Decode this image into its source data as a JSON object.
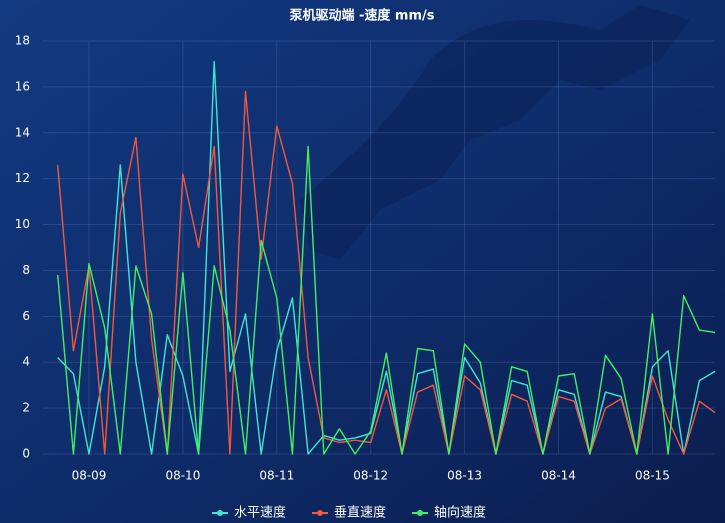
{
  "chart_data": {
    "type": "line",
    "title": "泵机驱动端 -速度 mm/s",
    "categories": [
      null,
      null,
      "08-09",
      null,
      null,
      null,
      null,
      null,
      "08-10",
      null,
      null,
      null,
      null,
      null,
      "08-11",
      null,
      null,
      null,
      null,
      null,
      "08-12",
      null,
      null,
      null,
      null,
      null,
      "08-13",
      null,
      null,
      null,
      null,
      null,
      "08-14",
      null,
      null,
      null,
      null,
      null,
      "08-15",
      null,
      null,
      null,
      null
    ],
    "series": [
      {
        "name": "水平速度",
        "color": "#3fe6d2",
        "values": [
          4.2,
          3.5,
          0,
          3.8,
          12.6,
          4.0,
          0,
          5.2,
          3.4,
          0,
          17.1,
          3.6,
          6.1,
          0,
          4.5,
          6.8,
          0,
          0.8,
          0.6,
          0.7,
          0.9,
          3.6,
          0,
          3.5,
          3.7,
          0,
          4.2,
          3.1,
          0,
          3.2,
          3.0,
          0,
          2.8,
          2.6,
          0,
          2.7,
          2.5,
          0,
          3.8,
          4.5,
          0,
          3.2,
          3.6
        ]
      },
      {
        "name": "垂直速度",
        "color": "#f2583c",
        "values": [
          12.6,
          4.5,
          8.2,
          0,
          10.5,
          13.8,
          5.0,
          0,
          12.2,
          9.0,
          13.4,
          0,
          15.8,
          8.5,
          14.3,
          11.8,
          4.2,
          0.7,
          0.5,
          0.6,
          0.5,
          2.8,
          0,
          2.7,
          3.0,
          0,
          3.4,
          2.8,
          0,
          2.6,
          2.3,
          0,
          2.5,
          2.3,
          0,
          2.0,
          2.4,
          0,
          3.4,
          1.5,
          0,
          2.3,
          1.8
        ]
      },
      {
        "name": "轴向速度",
        "color": "#41f060",
        "values": [
          7.8,
          0,
          8.3,
          5.5,
          0,
          8.2,
          6.1,
          0,
          7.9,
          0,
          8.2,
          5.4,
          0,
          9.3,
          6.8,
          0,
          13.4,
          0,
          1.1,
          0,
          1.0,
          4.4,
          0,
          4.6,
          4.5,
          0,
          4.8,
          4.0,
          0,
          3.8,
          3.6,
          0,
          3.4,
          3.5,
          0,
          4.3,
          3.3,
          0,
          6.1,
          0,
          6.9,
          5.4,
          5.3
        ]
      }
    ],
    "ylim": [
      0,
      18
    ],
    "yticks": [
      0,
      2,
      4,
      6,
      8,
      10,
      12,
      14,
      16,
      18
    ],
    "grid": true
  }
}
